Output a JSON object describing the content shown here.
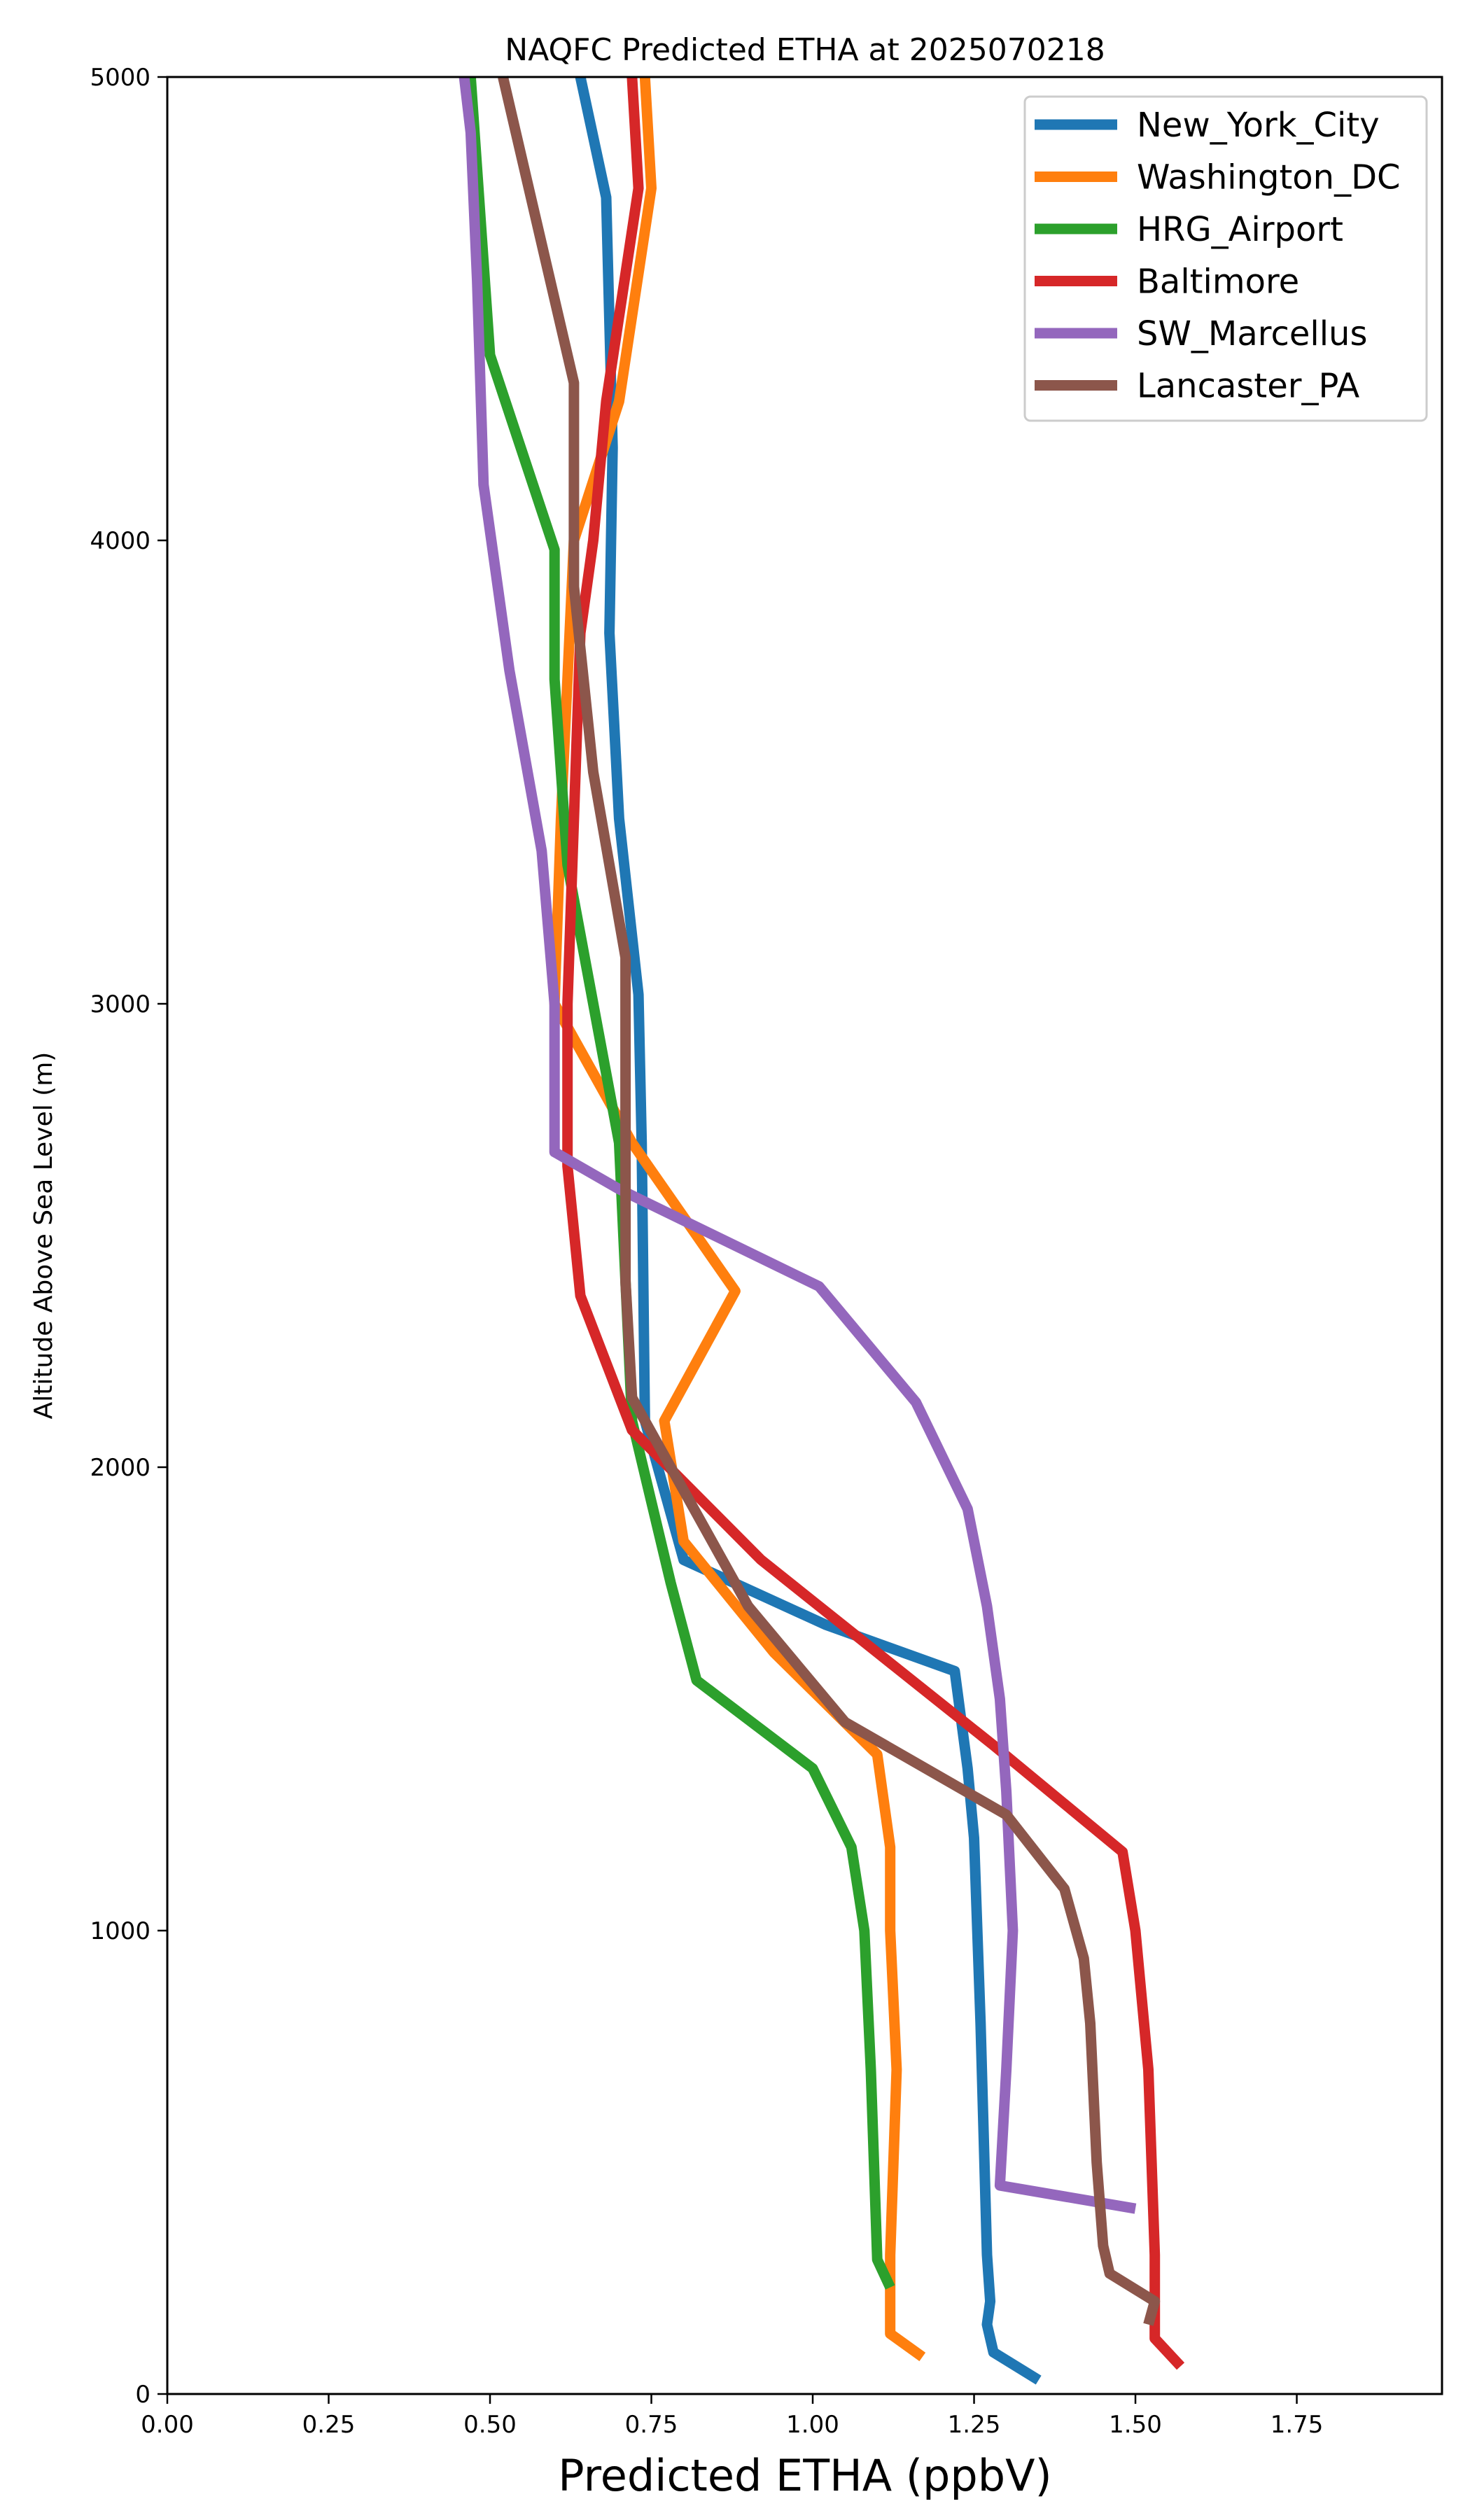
{
  "chart_data": {
    "type": "line",
    "title": "NAQFC Predicted ETHA at 2025070218",
    "xlabel": "Predicted ETHA (ppbV)",
    "ylabel": "Altitude Above Sea Level (m)",
    "xlim": [
      0.0,
      1.975
    ],
    "ylim": [
      0,
      5000
    ],
    "xticks": [
      "0.00",
      "0.25",
      "0.50",
      "0.75",
      "1.00",
      "1.25",
      "1.50",
      "1.75"
    ],
    "yticks": [
      "0",
      "1000",
      "2000",
      "3000",
      "4000",
      "5000"
    ],
    "grid": false,
    "legend_position": "top-right",
    "series": [
      {
        "name": "New_York_City",
        "color": "#1f77b4",
        "points": [
          [
            1.35,
            30
          ],
          [
            1.28,
            90
          ],
          [
            1.27,
            150
          ],
          [
            1.275,
            200
          ],
          [
            1.27,
            300
          ],
          [
            1.26,
            800
          ],
          [
            1.25,
            1200
          ],
          [
            1.24,
            1350
          ],
          [
            1.22,
            1560
          ],
          [
            1.02,
            1660
          ],
          [
            0.8,
            1800
          ],
          [
            0.74,
            2100
          ],
          [
            0.735,
            2700
          ],
          [
            0.73,
            3020
          ],
          [
            0.7,
            3400
          ],
          [
            0.685,
            3800
          ],
          [
            0.69,
            4200
          ],
          [
            0.68,
            4740
          ],
          [
            0.64,
            5000
          ]
        ]
      },
      {
        "name": "Washington_DC",
        "color": "#ff7f0e",
        "points": [
          [
            1.17,
            80
          ],
          [
            1.12,
            130
          ],
          [
            1.12,
            300
          ],
          [
            1.13,
            700
          ],
          [
            1.12,
            1000
          ],
          [
            1.12,
            1180
          ],
          [
            1.1,
            1380
          ],
          [
            0.94,
            1600
          ],
          [
            0.8,
            1840
          ],
          [
            0.77,
            2100
          ],
          [
            0.88,
            2380
          ],
          [
            0.72,
            2700
          ],
          [
            0.6,
            3000
          ],
          [
            0.61,
            3400
          ],
          [
            0.63,
            4000
          ],
          [
            0.7,
            4300
          ],
          [
            0.75,
            4760
          ],
          [
            0.74,
            5000
          ]
        ]
      },
      {
        "name": "HRG_Airport",
        "color": "#2ca02c",
        "points": [
          [
            1.12,
            230
          ],
          [
            1.1,
            290
          ],
          [
            1.09,
            700
          ],
          [
            1.08,
            1000
          ],
          [
            1.06,
            1180
          ],
          [
            1.0,
            1350
          ],
          [
            0.82,
            1540
          ],
          [
            0.78,
            1750
          ],
          [
            0.72,
            2100
          ],
          [
            0.71,
            2400
          ],
          [
            0.7,
            2700
          ],
          [
            0.66,
            3000
          ],
          [
            0.62,
            3300
          ],
          [
            0.6,
            3700
          ],
          [
            0.6,
            3980
          ],
          [
            0.5,
            4400
          ],
          [
            0.48,
            4800
          ],
          [
            0.47,
            5000
          ]
        ]
      },
      {
        "name": "Baltimore",
        "color": "#d62728",
        "points": [
          [
            1.57,
            60
          ],
          [
            1.53,
            120
          ],
          [
            1.53,
            300
          ],
          [
            1.52,
            700
          ],
          [
            1.5,
            1000
          ],
          [
            1.48,
            1170
          ],
          [
            1.28,
            1400
          ],
          [
            1.1,
            1600
          ],
          [
            0.92,
            1800
          ],
          [
            0.72,
            2080
          ],
          [
            0.64,
            2370
          ],
          [
            0.62,
            2650
          ],
          [
            0.62,
            3000
          ],
          [
            0.63,
            3400
          ],
          [
            0.64,
            3800
          ],
          [
            0.66,
            4000
          ],
          [
            0.68,
            4300
          ],
          [
            0.73,
            4760
          ],
          [
            0.72,
            5000
          ]
        ]
      },
      {
        "name": "SW_Marcellus",
        "color": "#9467bd",
        "points": [
          [
            1.5,
            400
          ],
          [
            1.29,
            450
          ],
          [
            1.3,
            700
          ],
          [
            1.31,
            1000
          ],
          [
            1.3,
            1300
          ],
          [
            1.29,
            1500
          ],
          [
            1.27,
            1700
          ],
          [
            1.24,
            1910
          ],
          [
            1.16,
            2140
          ],
          [
            1.01,
            2390
          ],
          [
            0.7,
            2600
          ],
          [
            0.6,
            2680
          ],
          [
            0.6,
            3000
          ],
          [
            0.58,
            3330
          ],
          [
            0.53,
            3720
          ],
          [
            0.49,
            4120
          ],
          [
            0.48,
            4560
          ],
          [
            0.47,
            4880
          ],
          [
            0.46,
            5000
          ]
        ]
      },
      {
        "name": "Lancaster_PA",
        "color": "#8c564b",
        "points": [
          [
            1.52,
            150
          ],
          [
            1.53,
            200
          ],
          [
            1.46,
            260
          ],
          [
            1.45,
            320
          ],
          [
            1.44,
            500
          ],
          [
            1.43,
            800
          ],
          [
            1.42,
            940
          ],
          [
            1.39,
            1090
          ],
          [
            1.3,
            1250
          ],
          [
            1.05,
            1450
          ],
          [
            0.9,
            1700
          ],
          [
            0.72,
            2150
          ],
          [
            0.71,
            2400
          ],
          [
            0.71,
            2700
          ],
          [
            0.71,
            3100
          ],
          [
            0.66,
            3500
          ],
          [
            0.63,
            3900
          ],
          [
            0.63,
            4340
          ],
          [
            0.57,
            4700
          ],
          [
            0.52,
            5000
          ]
        ]
      }
    ]
  }
}
